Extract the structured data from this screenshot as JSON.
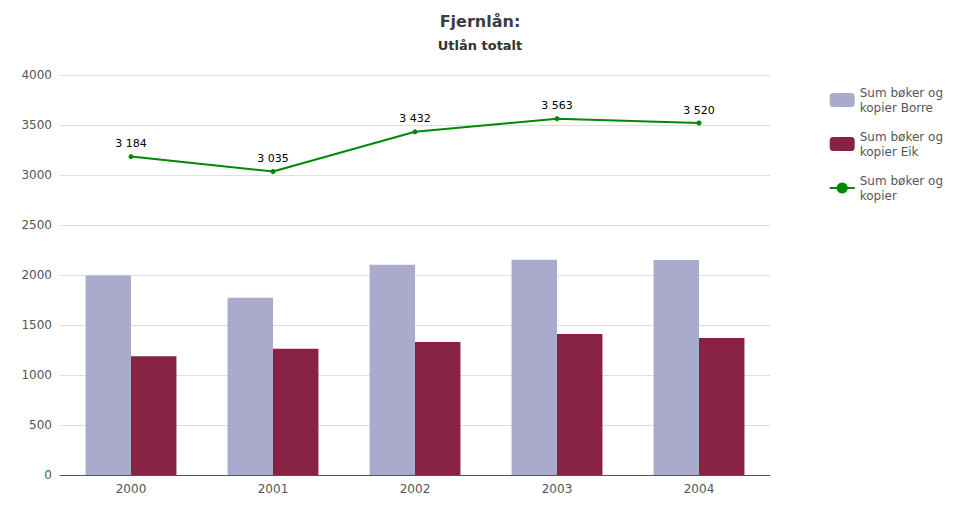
{
  "chart_data": {
    "type": "bar",
    "title": "Fjernlån:",
    "subtitle": "Utlån totalt",
    "categories": [
      "2000",
      "2001",
      "2002",
      "2003",
      "2004"
    ],
    "series": [
      {
        "name": "Sum bøker og\nkopier Borre",
        "type": "bar",
        "color": "#aaaacc",
        "values": [
          1996,
          1772,
          2103,
          2153,
          2150
        ]
      },
      {
        "name": "Sum bøker og\nkopier Eik",
        "type": "bar",
        "color": "#882244",
        "values": [
          1188,
          1263,
          1329,
          1410,
          1370
        ]
      },
      {
        "name": "Sum bøker og\nkopier",
        "type": "line",
        "color": "#008800",
        "values": [
          3184,
          3035,
          3432,
          3563,
          3520
        ],
        "data_labels": true,
        "value_labels": [
          "3 184",
          "3 035",
          "3 432",
          "3 563",
          "3 520"
        ]
      }
    ],
    "ylim": [
      0,
      4000
    ],
    "yticks": [
      0,
      500,
      1000,
      1500,
      2000,
      2500,
      3000,
      3500,
      4000
    ],
    "grid": true,
    "legend": "upper right"
  }
}
